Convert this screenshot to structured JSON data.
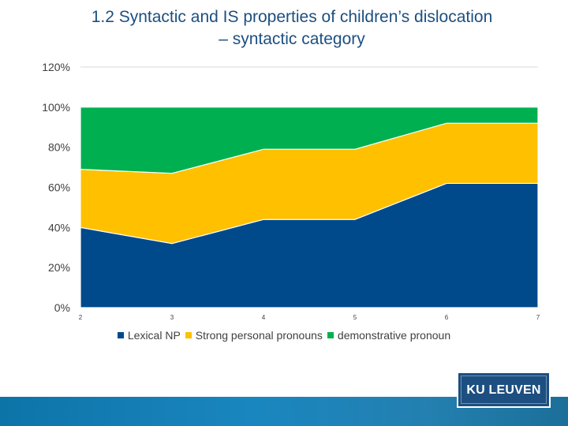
{
  "chart_data": {
    "type": "area",
    "stacked": true,
    "title_line1": "1.2 Syntactic and IS properties of children’s dislocation",
    "title_line2": "– syntactic category",
    "x": [
      "2",
      "3",
      "4",
      "5",
      "6",
      "7"
    ],
    "y_ticks": [
      "0%",
      "20%",
      "40%",
      "60%",
      "80%",
      "100%",
      "120%"
    ],
    "ylim": [
      0,
      120
    ],
    "grid": true,
    "legend_position": "bottom",
    "series": [
      {
        "name": "Lexical NP",
        "color": "#004a8c",
        "values": [
          40,
          32,
          44,
          44,
          62,
          62
        ]
      },
      {
        "name": "Strong personal pronouns",
        "color": "#ffc000",
        "values": [
          29,
          35,
          35,
          35,
          30,
          30
        ]
      },
      {
        "name": "demonstrative pronoun",
        "color": "#00b050",
        "values": [
          31,
          33,
          21,
          21,
          8,
          8
        ]
      }
    ]
  },
  "logo": {
    "text": "KU LEUVEN"
  }
}
